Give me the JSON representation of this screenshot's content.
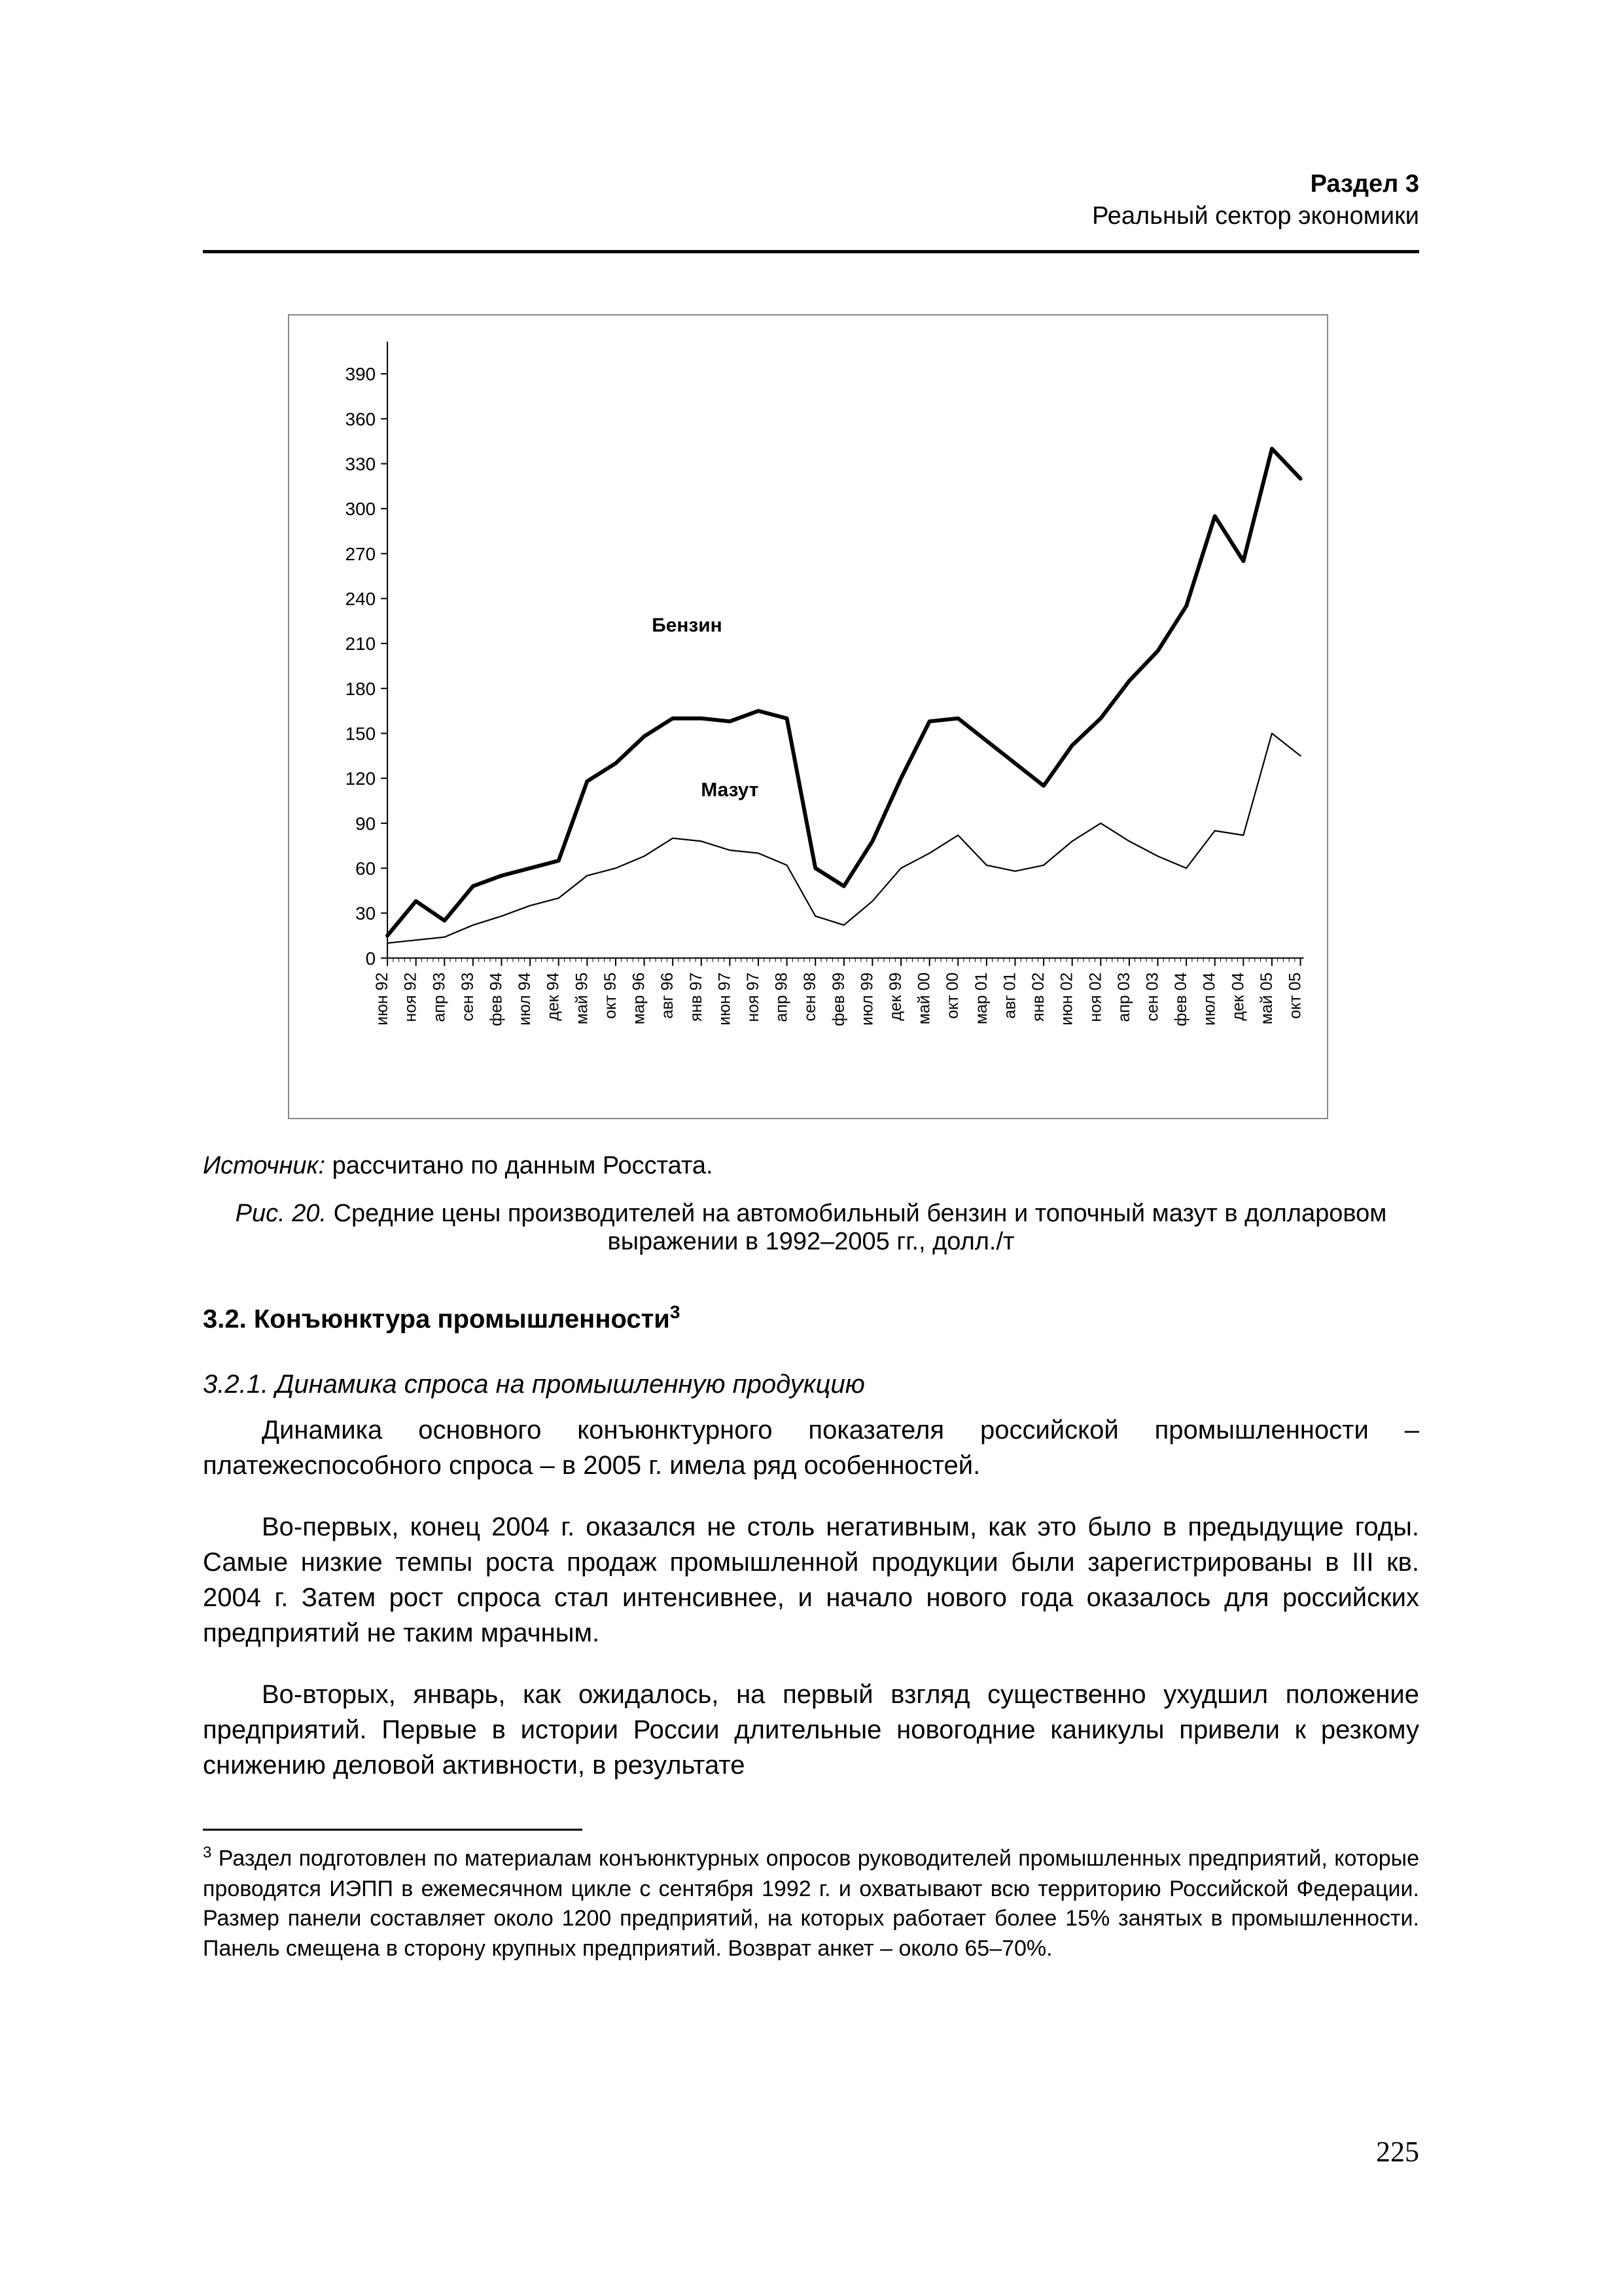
{
  "header": {
    "section": "Раздел 3",
    "subtitle": "Реальный сектор экономики"
  },
  "page_number": "225",
  "source": {
    "label": "Источник:",
    "text": " рассчитано по данным Росстата."
  },
  "caption": {
    "label": "Рис. 20.",
    "text": " Средние цены производителей на автомобильный бензин и топочный мазут в долларовом выражении в 1992–2005 гг., долл./т"
  },
  "section_heading": {
    "number": "3.2.",
    "title": "Конъюнктура промышленности",
    "footnote_mark": "3"
  },
  "subsection_heading": "3.2.1. Динамика спроса на промышленную продукцию",
  "paragraphs": [
    "Динамика основного конъюнктурного показателя российской промышленности – платежеспособного спроса – в 2005 г. имела ряд особенностей.",
    "Во-первых, конец 2004 г. оказался не столь негативным, как это было в предыдущие годы. Самые низкие темпы роста продаж промышленной продукции были зарегистрированы в III кв. 2004 г. Затем рост спроса стал интенсивнее, и начало нового года оказалось для российских предприятий не таким мрачным.",
    "Во-вторых, январь, как ожидалось, на первый взгляд существенно ухудшил положение предприятий. Первые в истории России длительные новогодние каникулы привели к резкому снижению деловой активности, в результате"
  ],
  "footnote": {
    "mark": "3",
    "text": " Раздел подготовлен по материалам конъюнктурных опросов руководителей промышленных предприятий, которые проводятся ИЭПП в ежемесячном цикле с сентября 1992 г. и охватывают всю территорию Российской Федерации. Размер панели составляет около 1200 предприятий, на которых работает более 15% занятых в промышленности. Панель смещена в сторону крупных предприятий. Возврат анкет – около 65–70%."
  },
  "chart": {
    "type": "line",
    "background_color": "#ffffff",
    "border_color": "#888888",
    "axis_color": "#000000",
    "tick_font_size_pt": 10,
    "y": {
      "min": 0,
      "max": 405,
      "ticks": [
        0,
        30,
        60,
        90,
        120,
        150,
        180,
        210,
        240,
        270,
        300,
        330,
        360,
        390
      ]
    },
    "x_labels": [
      "июн 92",
      "ноя 92",
      "апр 93",
      "сен 93",
      "фев 94",
      "июл 94",
      "дек 94",
      "май 95",
      "окт 95",
      "мар 96",
      "авг 96",
      "янв 97",
      "июн 97",
      "ноя 97",
      "апр 98",
      "сен 98",
      "фев 99",
      "июл 99",
      "дек 99",
      "май 00",
      "окт 00",
      "мар 01",
      "авг 01",
      "янв 02",
      "июн 02",
      "ноя 02",
      "апр 03",
      "сен 03",
      "фев 04",
      "июл 04",
      "дек 04",
      "май 05",
      "окт 05"
    ],
    "series": [
      {
        "name": "Бензин",
        "label": "Бензин",
        "label_pos": {
          "x_index": 10.5,
          "y": 218
        },
        "color": "#000000",
        "line_width": 6,
        "values": [
          15,
          38,
          25,
          48,
          55,
          60,
          65,
          118,
          130,
          148,
          160,
          160,
          158,
          165,
          160,
          60,
          48,
          78,
          120,
          158,
          160,
          145,
          130,
          115,
          142,
          160,
          185,
          205,
          235,
          295,
          265,
          340,
          320
        ]
      },
      {
        "name": "Мазут",
        "label": "Мазут",
        "label_pos": {
          "x_index": 12,
          "y": 108
        },
        "color": "#000000",
        "line_width": 2.2,
        "values": [
          10,
          12,
          14,
          22,
          28,
          35,
          40,
          55,
          60,
          68,
          80,
          78,
          72,
          70,
          62,
          28,
          22,
          38,
          60,
          70,
          82,
          62,
          58,
          62,
          78,
          90,
          78,
          68,
          60,
          85,
          82,
          150,
          135
        ]
      }
    ]
  }
}
